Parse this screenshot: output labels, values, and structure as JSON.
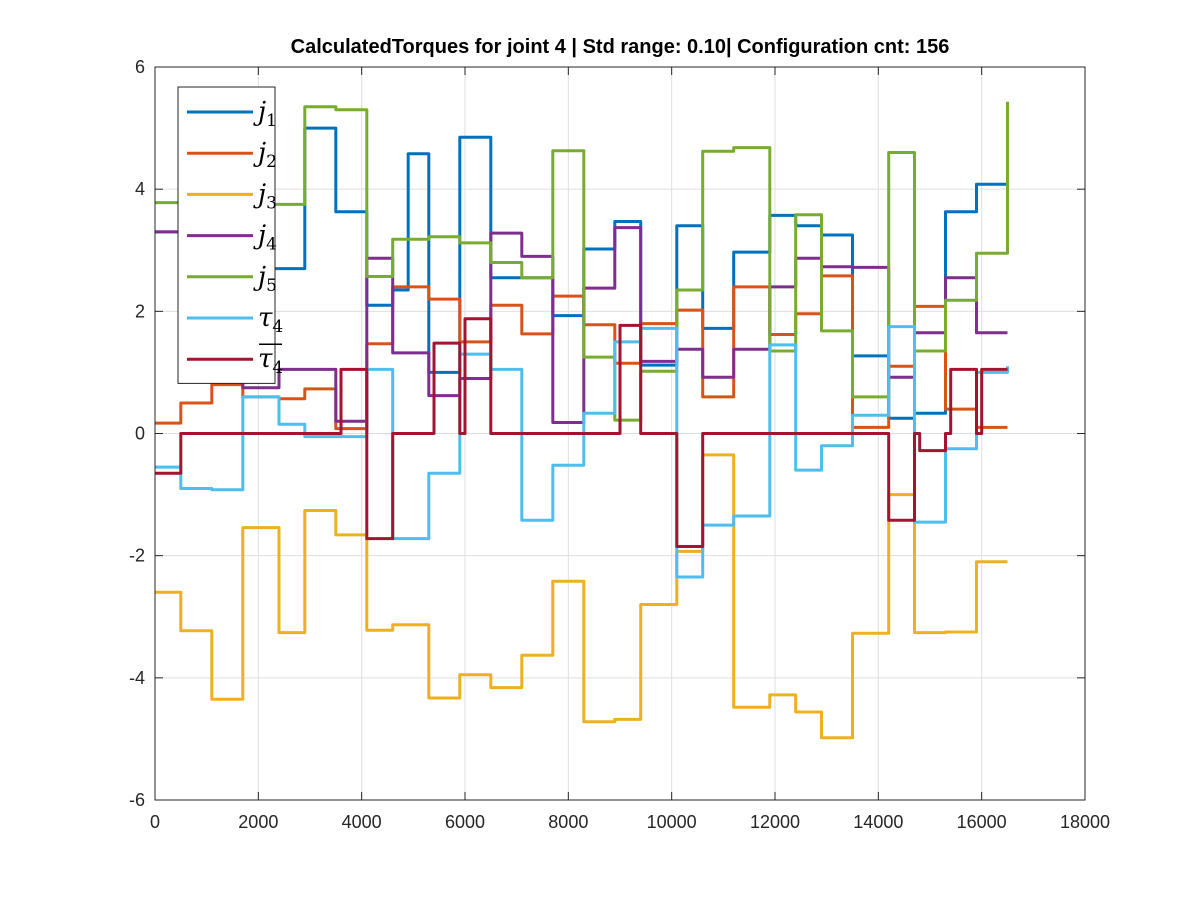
{
  "chart_data": {
    "type": "line",
    "title": "CalculatedTorques for joint 4 | Std range: 0.10| Configuration cnt: 156",
    "xlabel": "",
    "ylabel": "",
    "xlim": [
      0,
      18000
    ],
    "ylim": [
      -6,
      6
    ],
    "xticks": [
      0,
      2000,
      4000,
      6000,
      8000,
      10000,
      12000,
      14000,
      16000,
      18000
    ],
    "yticks": [
      -6,
      -4,
      -2,
      0,
      2,
      4,
      6
    ],
    "xtick_labels": [
      "0",
      "2000",
      "4000",
      "6000",
      "8000",
      "10000",
      "12000",
      "14000",
      "16000",
      "18000"
    ],
    "ytick_labels": [
      "-6",
      "-4",
      "-2",
      "0",
      "2",
      "4",
      "6"
    ],
    "grid": true,
    "legend_position": "top-left",
    "series": [
      {
        "name": "j1",
        "legend_base": "j",
        "legend_sub": "1",
        "overline": false,
        "color": "#0072BD",
        "steps": [
          [
            0,
            3.3
          ],
          [
            500,
            2.9
          ],
          [
            2000,
            2.7
          ],
          [
            2900,
            5.0
          ],
          [
            3500,
            3.63
          ],
          [
            4100,
            2.1
          ],
          [
            4600,
            2.35
          ],
          [
            4900,
            4.58
          ],
          [
            5300,
            1.0
          ],
          [
            5900,
            4.85
          ],
          [
            6500,
            2.55
          ],
          [
            7700,
            1.93
          ],
          [
            8300,
            3.02
          ],
          [
            8900,
            3.47
          ],
          [
            9400,
            1.12
          ],
          [
            10100,
            3.4
          ],
          [
            10600,
            1.72
          ],
          [
            11200,
            2.97
          ],
          [
            11900,
            3.57
          ],
          [
            12400,
            3.4
          ],
          [
            12900,
            3.25
          ],
          [
            13500,
            1.27
          ],
          [
            14200,
            0.25
          ],
          [
            14700,
            0.33
          ],
          [
            15300,
            3.63
          ],
          [
            15900,
            4.08
          ],
          [
            16500,
            4.08
          ]
        ]
      },
      {
        "name": "j2",
        "legend_base": "j",
        "legend_sub": "2",
        "overline": false,
        "color": "#D95319",
        "steps": [
          [
            0,
            0.17
          ],
          [
            500,
            0.5
          ],
          [
            1100,
            0.8
          ],
          [
            1700,
            0.6
          ],
          [
            2400,
            0.57
          ],
          [
            2900,
            0.73
          ],
          [
            3500,
            0.08
          ],
          [
            4100,
            1.47
          ],
          [
            4600,
            2.4
          ],
          [
            5300,
            2.2
          ],
          [
            5900,
            1.5
          ],
          [
            6500,
            2.1
          ],
          [
            7100,
            1.63
          ],
          [
            7700,
            2.25
          ],
          [
            8300,
            1.78
          ],
          [
            8900,
            1.15
          ],
          [
            9400,
            1.8
          ],
          [
            10100,
            2.02
          ],
          [
            10600,
            0.6
          ],
          [
            11200,
            2.4
          ],
          [
            11900,
            1.62
          ],
          [
            12400,
            1.96
          ],
          [
            12900,
            2.58
          ],
          [
            13500,
            0.1
          ],
          [
            14200,
            1.1
          ],
          [
            14700,
            2.08
          ],
          [
            15300,
            0.4
          ],
          [
            15900,
            0.1
          ],
          [
            16500,
            0.1
          ]
        ]
      },
      {
        "name": "j3",
        "legend_base": "j",
        "legend_sub": "3",
        "overline": false,
        "color": "#EDB120",
        "steps": [
          [
            0,
            -2.6
          ],
          [
            500,
            -3.23
          ],
          [
            1100,
            -4.35
          ],
          [
            1700,
            -1.54
          ],
          [
            2400,
            -3.26
          ],
          [
            2900,
            -1.26
          ],
          [
            3500,
            -1.66
          ],
          [
            4100,
            -3.22
          ],
          [
            4600,
            -3.13
          ],
          [
            5300,
            -4.33
          ],
          [
            5900,
            -3.95
          ],
          [
            6500,
            -4.16
          ],
          [
            7100,
            -3.63
          ],
          [
            7700,
            -2.42
          ],
          [
            8300,
            -4.72
          ],
          [
            8900,
            -4.68
          ],
          [
            9400,
            -2.8
          ],
          [
            10100,
            -1.93
          ],
          [
            10600,
            -0.35
          ],
          [
            11200,
            -4.48
          ],
          [
            11900,
            -4.28
          ],
          [
            12400,
            -4.56
          ],
          [
            12900,
            -4.98
          ],
          [
            13500,
            -3.27
          ],
          [
            14200,
            -1.0
          ],
          [
            14700,
            -3.26
          ],
          [
            15300,
            -3.25
          ],
          [
            15900,
            -2.1
          ],
          [
            16500,
            -2.1
          ]
        ]
      },
      {
        "name": "j4",
        "legend_base": "j",
        "legend_sub": "4",
        "overline": false,
        "color": "#7E2F8E",
        "steps": [
          [
            0,
            3.3
          ],
          [
            500,
            2.5
          ],
          [
            1700,
            0.75
          ],
          [
            2400,
            1.05
          ],
          [
            3500,
            0.2
          ],
          [
            4100,
            2.87
          ],
          [
            4600,
            1.32
          ],
          [
            5300,
            0.62
          ],
          [
            5900,
            0.9
          ],
          [
            6500,
            3.28
          ],
          [
            7100,
            2.9
          ],
          [
            7700,
            0.18
          ],
          [
            8300,
            2.38
          ],
          [
            8900,
            3.37
          ],
          [
            9400,
            1.18
          ],
          [
            10100,
            1.38
          ],
          [
            10600,
            0.92
          ],
          [
            11200,
            1.38
          ],
          [
            11900,
            2.4
          ],
          [
            12400,
            2.87
          ],
          [
            12900,
            2.73
          ],
          [
            13500,
            2.72
          ],
          [
            14200,
            0.92
          ],
          [
            14700,
            1.65
          ],
          [
            15300,
            2.55
          ],
          [
            15900,
            1.65
          ],
          [
            16500,
            1.65
          ]
        ]
      },
      {
        "name": "j5",
        "legend_base": "j",
        "legend_sub": "5",
        "overline": false,
        "color": "#77AC30",
        "steps": [
          [
            0,
            3.78
          ],
          [
            500,
            3.75
          ],
          [
            2900,
            5.35
          ],
          [
            3500,
            5.3
          ],
          [
            4100,
            2.57
          ],
          [
            4600,
            3.18
          ],
          [
            5300,
            3.22
          ],
          [
            5900,
            3.12
          ],
          [
            6500,
            2.8
          ],
          [
            7100,
            2.55
          ],
          [
            7700,
            4.63
          ],
          [
            8300,
            1.25
          ],
          [
            8900,
            0.22
          ],
          [
            9400,
            1.02
          ],
          [
            10100,
            2.35
          ],
          [
            10600,
            4.62
          ],
          [
            11200,
            4.68
          ],
          [
            11900,
            1.35
          ],
          [
            12400,
            3.58
          ],
          [
            12900,
            1.68
          ],
          [
            13500,
            0.6
          ],
          [
            14200,
            4.6
          ],
          [
            14700,
            1.35
          ],
          [
            15300,
            2.18
          ],
          [
            15900,
            2.95
          ],
          [
            16500,
            5.43
          ]
        ]
      },
      {
        "name": "τ4",
        "legend_base": "τ",
        "legend_sub": "4",
        "overline": false,
        "color": "#4DBEEE",
        "steps": [
          [
            0,
            -0.55
          ],
          [
            500,
            -0.9
          ],
          [
            1100,
            -0.92
          ],
          [
            1700,
            0.6
          ],
          [
            2400,
            0.15
          ],
          [
            2900,
            -0.05
          ],
          [
            3500,
            -0.05
          ],
          [
            4100,
            1.05
          ],
          [
            4600,
            -1.72
          ],
          [
            5300,
            -0.65
          ],
          [
            5900,
            1.3
          ],
          [
            6500,
            1.05
          ],
          [
            7100,
            -1.42
          ],
          [
            7700,
            -0.52
          ],
          [
            8300,
            0.33
          ],
          [
            8900,
            1.5
          ],
          [
            9400,
            1.72
          ],
          [
            10100,
            -2.35
          ],
          [
            10600,
            -1.5
          ],
          [
            11200,
            -1.35
          ],
          [
            11900,
            1.45
          ],
          [
            12400,
            -0.6
          ],
          [
            12900,
            -0.2
          ],
          [
            13500,
            0.3
          ],
          [
            14200,
            1.75
          ],
          [
            14700,
            -1.45
          ],
          [
            15300,
            -0.25
          ],
          [
            15900,
            1.0
          ],
          [
            16500,
            1.1
          ]
        ]
      },
      {
        "name": "τ4 mean",
        "legend_base": "τ",
        "legend_sub": "4",
        "overline": true,
        "color": "#A2142F",
        "steps": [
          [
            0,
            -0.65
          ],
          [
            500,
            0
          ],
          [
            3500,
            0
          ],
          [
            3600,
            1.05
          ],
          [
            4100,
            -1.72
          ],
          [
            4600,
            0
          ],
          [
            5300,
            0
          ],
          [
            5400,
            1.48
          ],
          [
            5900,
            0
          ],
          [
            6000,
            1.88
          ],
          [
            6500,
            0
          ],
          [
            8900,
            0
          ],
          [
            9000,
            1.77
          ],
          [
            9400,
            0
          ],
          [
            10100,
            -1.85
          ],
          [
            10600,
            0
          ],
          [
            14200,
            -1.42
          ],
          [
            14700,
            0
          ],
          [
            14800,
            -0.28
          ],
          [
            15300,
            0
          ],
          [
            15400,
            1.05
          ],
          [
            15900,
            0
          ],
          [
            16000,
            1.05
          ],
          [
            16500,
            1.05
          ]
        ]
      }
    ]
  }
}
